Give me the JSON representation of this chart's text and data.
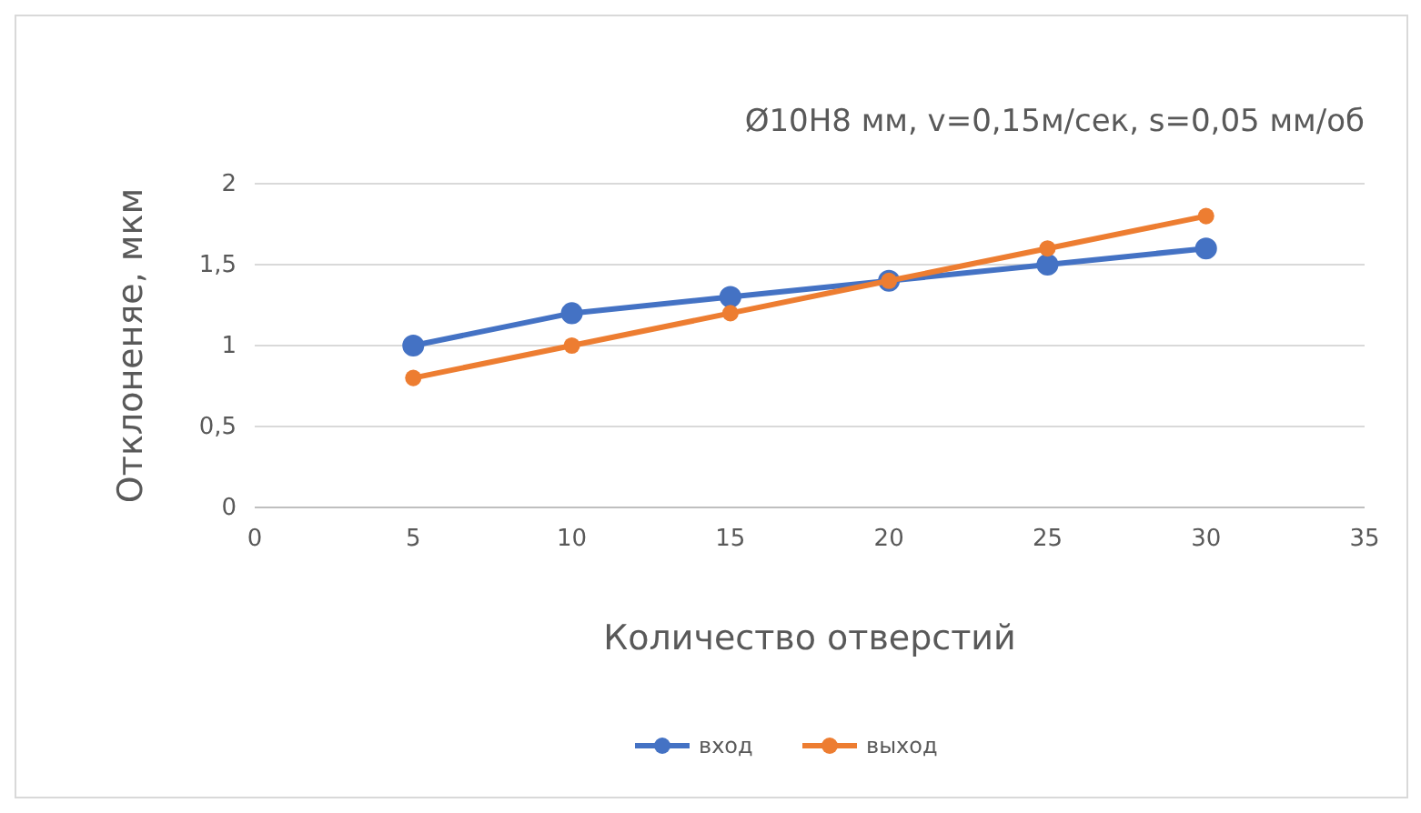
{
  "chart_data": {
    "type": "line",
    "title": "Ø10Н8 мм, v=0,15м/сек, s=0,05 мм/об",
    "xlabel": "Количество отверстий",
    "ylabel": "Отклоненяе, мкм",
    "x": [
      5,
      10,
      15,
      20,
      25,
      30
    ],
    "series": [
      {
        "name": "вход",
        "color": "#4472c4",
        "values": [
          1,
          1.2,
          1.3,
          1.4,
          1.5,
          1.6
        ]
      },
      {
        "name": "выход",
        "color": "#ed7d31",
        "values": [
          0.8,
          1.0,
          1.2,
          1.4,
          1.6,
          1.8
        ]
      }
    ],
    "xlim": [
      0,
      35
    ],
    "xticks": [
      0,
      5,
      10,
      15,
      20,
      25,
      30,
      35
    ],
    "ylim": [
      0,
      2
    ],
    "yticks": [
      0,
      {
        "value": 0.5,
        "label": "0,5"
      },
      1,
      {
        "value": 1.5,
        "label": "1,5"
      },
      2
    ],
    "grid": "y",
    "legend": "bottom",
    "marker": "circle",
    "line_style": "solid"
  }
}
